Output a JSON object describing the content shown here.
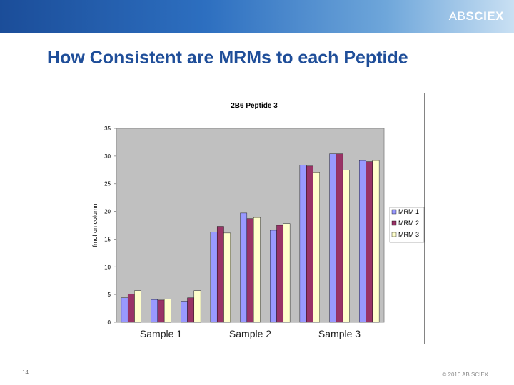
{
  "header": {
    "logo_ab": "AB",
    "logo_sciex": "SCIEX"
  },
  "slide": {
    "title": "How Consistent are MRMs to each Peptide",
    "page_number": "14",
    "copyright": "© 2010 AB SCIEX"
  },
  "chart_data": {
    "type": "bar",
    "title": "2B6 Peptide 3",
    "ylabel": "fmol on column",
    "xlabel": "",
    "ylim": [
      0,
      35
    ],
    "yticks": [
      0,
      5,
      10,
      15,
      20,
      25,
      30,
      35
    ],
    "grid": false,
    "legend_position": "right",
    "group_labels": [
      {
        "label": "Sample 1",
        "group_index": 1
      },
      {
        "label": "Sample 2",
        "group_index": 4
      },
      {
        "label": "Sample 3",
        "group_index": 7
      }
    ],
    "categories": [
      "1",
      "2",
      "3",
      "4",
      "5",
      "6",
      "7",
      "8",
      "9"
    ],
    "series": [
      {
        "name": "MRM 1",
        "color": "#9999ff",
        "values": [
          4.4,
          4.1,
          3.8,
          16.3,
          19.7,
          16.6,
          28.4,
          30.4,
          29.2
        ]
      },
      {
        "name": "MRM 2",
        "color": "#993366",
        "values": [
          5.1,
          4.0,
          4.4,
          17.3,
          18.7,
          17.5,
          28.2,
          30.4,
          29.0
        ]
      },
      {
        "name": "MRM 3",
        "color": "#ffffcc",
        "values": [
          5.7,
          4.2,
          5.7,
          16.1,
          18.9,
          17.8,
          27.1,
          27.5,
          29.2
        ]
      }
    ]
  }
}
